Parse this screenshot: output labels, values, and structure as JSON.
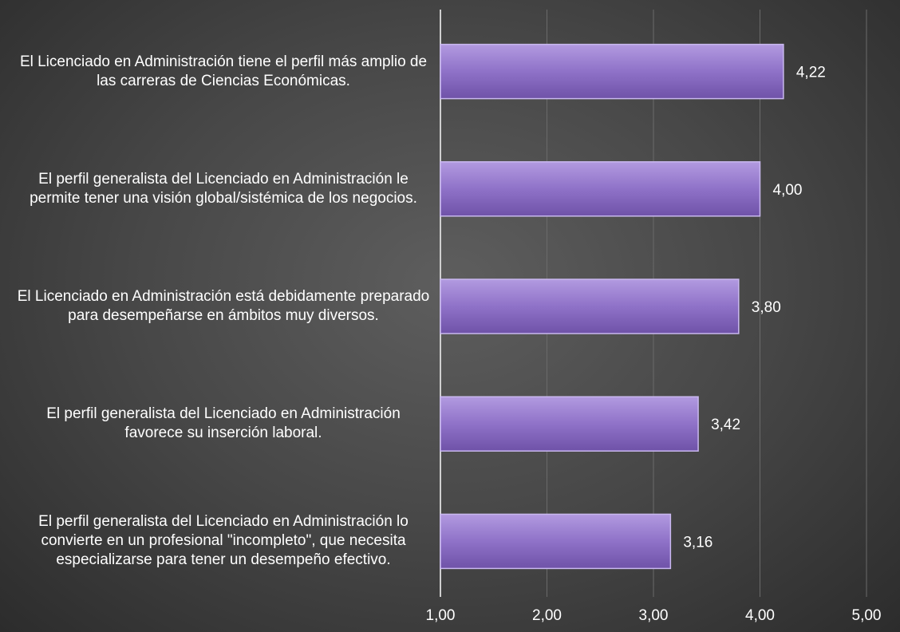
{
  "chart_data": {
    "type": "barh",
    "categories": [
      "El Licenciado en Administración tiene el perfil más amplio de las carreras de Ciencias Económicas.",
      "El perfil generalista del Licenciado en Administración le permite tener una visión global/sistémica de los negocios.",
      "El Licenciado en Administración está debidamente preparado para desempeñarse en ámbitos muy diversos.",
      "El perfil generalista del Licenciado en Administración favorece su inserción laboral.",
      "El perfil generalista del Licenciado en Administración lo convierte en un profesional \"incompleto\", que necesita especializarse para tener un desempeño efectivo."
    ],
    "values": [
      4.22,
      4.0,
      3.8,
      3.42,
      3.16
    ],
    "value_labels": [
      "4,22",
      "4,00",
      "3,80",
      "3,42",
      "3,16"
    ],
    "color": "#8f72c8",
    "xlim": [
      1,
      5
    ],
    "xticks": [
      {
        "value": 1,
        "label": "1,00"
      },
      {
        "value": 2,
        "label": "2,00"
      },
      {
        "value": 3,
        "label": "3,00"
      },
      {
        "value": 4,
        "label": "4,00"
      },
      {
        "value": 5,
        "label": "5,00"
      }
    ],
    "grid": true
  }
}
